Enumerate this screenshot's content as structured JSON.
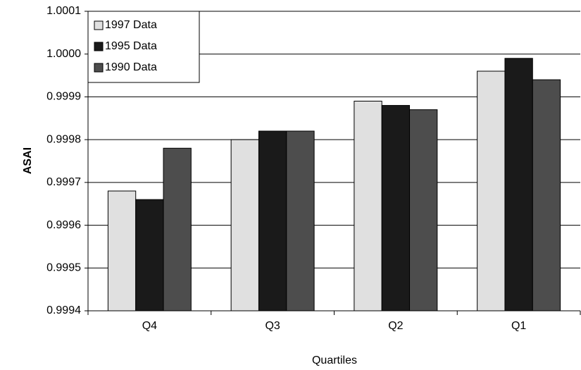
{
  "chart_data": {
    "type": "bar",
    "x_label": "Quartiles",
    "y_label": "ASAI",
    "categories": [
      "Q4",
      "Q3",
      "Q2",
      "Q1"
    ],
    "series": [
      {
        "name": "1997 Data",
        "color": "#e0e0e0",
        "values": [
          0.99968,
          0.9998,
          0.99989,
          0.99996
        ]
      },
      {
        "name": "1995 Data",
        "color": "#1a1a1a",
        "values": [
          0.99966,
          0.99982,
          0.99988,
          0.99999
        ]
      },
      {
        "name": "1990 Data",
        "color": "#4d4d4d",
        "values": [
          0.99978,
          0.99982,
          0.99987,
          0.99994
        ]
      }
    ],
    "ylim": [
      0.9994,
      1.0001
    ],
    "yticks": [
      0.9994,
      0.9995,
      0.9996,
      0.9997,
      0.9998,
      0.9999,
      {
        "value": 1,
        "label": "1.0000"
      },
      1.0001
    ],
    "grid": true,
    "legend": "upper left"
  }
}
